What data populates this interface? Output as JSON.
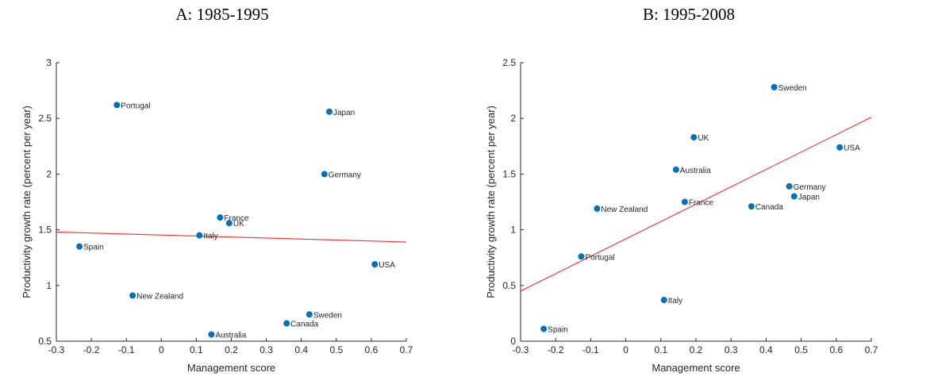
{
  "chart_data": [
    {
      "type": "scatter",
      "title": "A: 1985-1995",
      "xlabel": "Management score",
      "ylabel": "Productivity growth rate (percent per year)",
      "xlim": [
        -0.3,
        0.7
      ],
      "ylim": [
        0.5,
        3
      ],
      "xticks": [
        "-0.3",
        "-0.2",
        "-0.1",
        "0",
        "0.1",
        "0.2",
        "0.3",
        "0.4",
        "0.5",
        "0.6",
        "0.7"
      ],
      "yticks": [
        "0.5",
        "1",
        "1.5",
        "2",
        "2.5",
        "3"
      ],
      "points": [
        {
          "label": "Portugal",
          "x": -0.127,
          "y": 2.62
        },
        {
          "label": "Japan",
          "x": 0.48,
          "y": 2.56
        },
        {
          "label": "Germany",
          "x": 0.466,
          "y": 2.0
        },
        {
          "label": "France",
          "x": 0.168,
          "y": 1.61
        },
        {
          "label": "UK",
          "x": 0.194,
          "y": 1.56
        },
        {
          "label": "Italy",
          "x": 0.109,
          "y": 1.45
        },
        {
          "label": "Spain",
          "x": -0.234,
          "y": 1.35
        },
        {
          "label": "USA",
          "x": 0.61,
          "y": 1.19
        },
        {
          "label": "New Zealand",
          "x": -0.082,
          "y": 0.91
        },
        {
          "label": "Sweden",
          "x": 0.423,
          "y": 0.74
        },
        {
          "label": "Canada",
          "x": 0.358,
          "y": 0.66
        },
        {
          "label": "Australia",
          "x": 0.143,
          "y": 0.56
        }
      ],
      "fit_line": {
        "x": [
          -0.3,
          0.7
        ],
        "y": [
          1.48,
          1.39
        ]
      },
      "colors": {
        "marker": "#0072BD",
        "fit": "#ff2a2a"
      }
    },
    {
      "type": "scatter",
      "title": "B: 1995-2008",
      "xlabel": "Management score",
      "ylabel": "Productivity growth rate (percent per year)",
      "xlim": [
        -0.3,
        0.7
      ],
      "ylim": [
        0,
        2.5
      ],
      "xticks": [
        "-0.3",
        "-0.2",
        "-0.1",
        "0",
        "0.1",
        "0.2",
        "0.3",
        "0.4",
        "0.5",
        "0.6",
        "0.7"
      ],
      "yticks": [
        "0",
        "0.5",
        "1",
        "1.5",
        "2",
        "2.5"
      ],
      "points": [
        {
          "label": "Sweden",
          "x": 0.423,
          "y": 2.28
        },
        {
          "label": "UK",
          "x": 0.194,
          "y": 1.83
        },
        {
          "label": "USA",
          "x": 0.61,
          "y": 1.74
        },
        {
          "label": "Australia",
          "x": 0.143,
          "y": 1.54
        },
        {
          "label": "Germany",
          "x": 0.466,
          "y": 1.39
        },
        {
          "label": "Japan",
          "x": 0.48,
          "y": 1.3
        },
        {
          "label": "France",
          "x": 0.168,
          "y": 1.25
        },
        {
          "label": "Canada",
          "x": 0.358,
          "y": 1.21
        },
        {
          "label": "New Zealand",
          "x": -0.082,
          "y": 1.19
        },
        {
          "label": "Portugal",
          "x": -0.127,
          "y": 0.76
        },
        {
          "label": "Italy",
          "x": 0.109,
          "y": 0.37
        },
        {
          "label": "Spain",
          "x": -0.234,
          "y": 0.11
        }
      ],
      "fit_line": {
        "x": [
          -0.3,
          0.7
        ],
        "y": [
          0.45,
          2.01
        ]
      },
      "colors": {
        "marker": "#0072BD",
        "fit": "#ff2a2a"
      }
    }
  ]
}
